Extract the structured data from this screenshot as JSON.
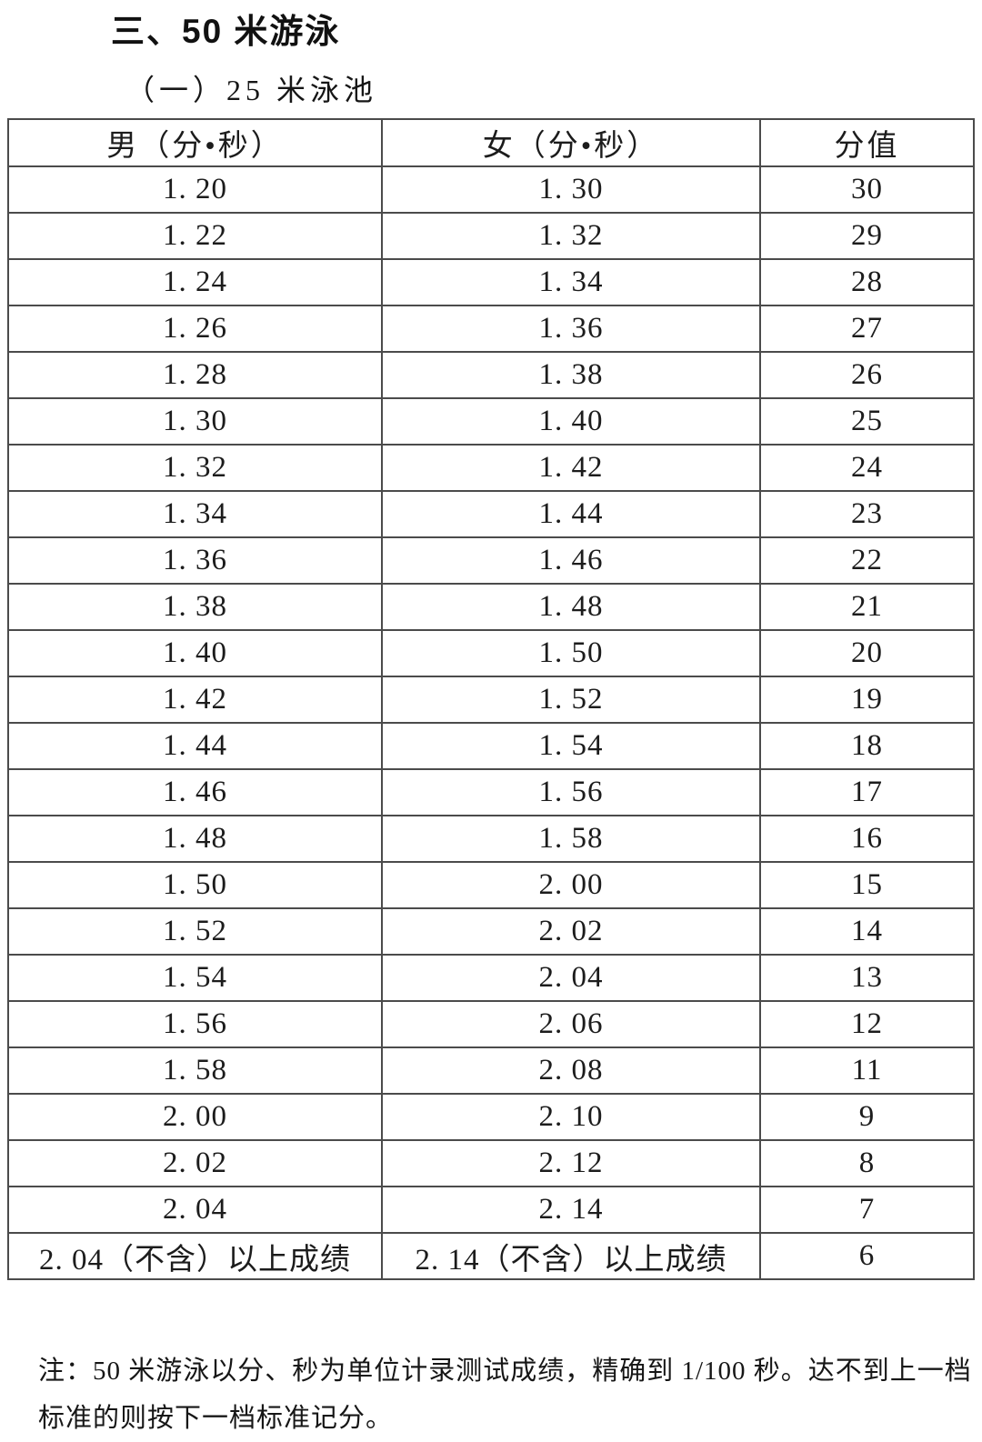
{
  "document": {
    "section_title": "三、50 米游泳",
    "subsection_title": "（一）25 米泳池"
  },
  "score_table": {
    "columns": {
      "male": "男（分•秒）",
      "female": "女（分•秒）",
      "score": "分值"
    },
    "rows": [
      [
        "1. 20",
        "1. 30",
        "30"
      ],
      [
        "1. 22",
        "1. 32",
        "29"
      ],
      [
        "1. 24",
        "1. 34",
        "28"
      ],
      [
        "1. 26",
        "1. 36",
        "27"
      ],
      [
        "1. 28",
        "1. 38",
        "26"
      ],
      [
        "1. 30",
        "1. 40",
        "25"
      ],
      [
        "1. 32",
        "1. 42",
        "24"
      ],
      [
        "1. 34",
        "1. 44",
        "23"
      ],
      [
        "1. 36",
        "1. 46",
        "22"
      ],
      [
        "1. 38",
        "1. 48",
        "21"
      ],
      [
        "1. 40",
        "1. 50",
        "20"
      ],
      [
        "1. 42",
        "1. 52",
        "19"
      ],
      [
        "1. 44",
        "1. 54",
        "18"
      ],
      [
        "1. 46",
        "1. 56",
        "17"
      ],
      [
        "1. 48",
        "1. 58",
        "16"
      ],
      [
        "1. 50",
        "2. 00",
        "15"
      ],
      [
        "1. 52",
        "2. 02",
        "14"
      ],
      [
        "1. 54",
        "2. 04",
        "13"
      ],
      [
        "1. 56",
        "2. 06",
        "12"
      ],
      [
        "1. 58",
        "2. 08",
        "11"
      ],
      [
        "2. 00",
        "2. 10",
        "9"
      ],
      [
        "2. 02",
        "2. 12",
        "8"
      ],
      [
        "2. 04",
        "2. 14",
        "7"
      ],
      [
        "2. 04（不含）以上成绩",
        "2. 14（不含）以上成绩",
        "6"
      ]
    ]
  },
  "footnote": {
    "line1": "注：50 米游泳以分、秒为单位计录测试成绩，精确到 1/100 秒。达不到上一档",
    "line2": "标准的则按下一档标准记分。"
  }
}
